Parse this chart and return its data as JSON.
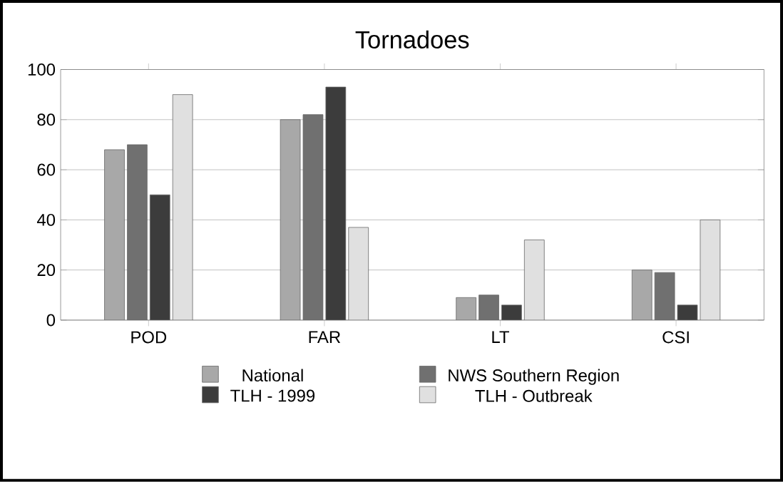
{
  "chart_data": {
    "type": "bar",
    "title": "Tornadoes",
    "categories": [
      "POD",
      "FAR",
      "LT",
      "CSI"
    ],
    "series": [
      {
        "name": "National",
        "color": "#a8a8a8",
        "values": [
          68,
          80,
          9,
          20
        ]
      },
      {
        "name": "NWS Southern Region",
        "color": "#707070",
        "values": [
          70,
          82,
          10,
          19
        ]
      },
      {
        "name": "TLH - 1999",
        "color": "#3c3c3c",
        "values": [
          50,
          93,
          6,
          6
        ]
      },
      {
        "name": "TLH - Outbreak",
        "color": "#e0e0e0",
        "values": [
          90,
          37,
          32,
          40
        ]
      }
    ],
    "ylim": [
      0,
      100
    ],
    "yticks": [
      0,
      20,
      40,
      60,
      80,
      100
    ],
    "grid": "y",
    "legend": "bottom"
  }
}
